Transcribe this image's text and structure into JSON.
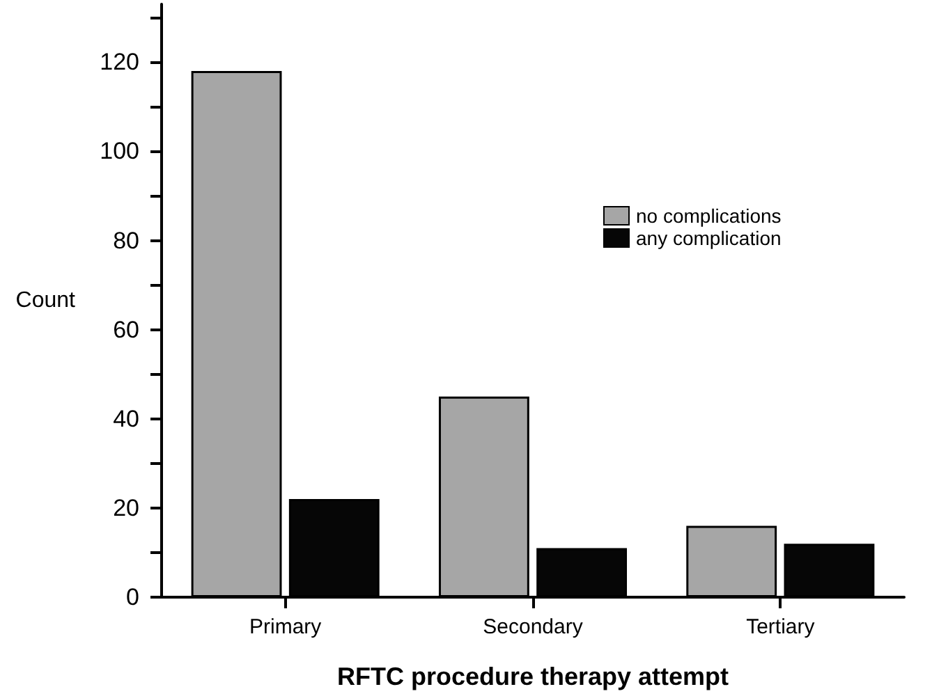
{
  "chart_data": {
    "type": "bar",
    "xlabel": "RFTC procedure therapy attempt",
    "ylabel": "Count",
    "categories": [
      "Primary",
      "Secondary",
      "Tertiary"
    ],
    "series": [
      {
        "name": "no complications",
        "color": "#a6a6a6",
        "values": [
          118,
          45,
          16
        ]
      },
      {
        "name": "any complication",
        "color": "#060606",
        "values": [
          22,
          11,
          12
        ]
      }
    ],
    "ylim": [
      0,
      133
    ],
    "yticks": [
      0,
      {
        "value": 10,
        "label": null
      },
      20,
      {
        "value": 30,
        "label": null
      },
      40,
      {
        "value": 50,
        "label": null
      },
      60,
      {
        "value": 70,
        "label": null
      },
      80,
      {
        "value": 90,
        "label": null
      },
      100,
      {
        "value": 110,
        "label": null
      },
      120,
      {
        "value": 130,
        "label": null
      }
    ],
    "grid": false,
    "legend": "top right"
  }
}
